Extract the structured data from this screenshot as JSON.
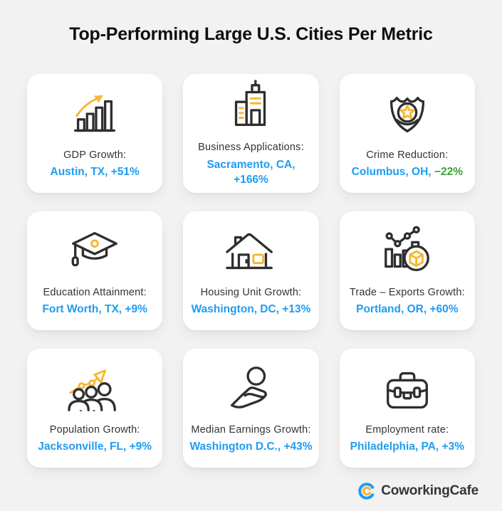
{
  "page": {
    "title": "Top-Performing Large U.S. Cities Per Metric",
    "background_color": "#f2f2f2"
  },
  "colors": {
    "value_blue": "#1d9df2",
    "value_green": "#3aa335",
    "icon_yellow": "#f7b733",
    "icon_dark": "#2e2e2e"
  },
  "cards": [
    {
      "icon": "bar-chart-growth-icon",
      "label": "GDP Growth:",
      "value": [
        {
          "text": "Austin, TX, +51%",
          "color": "blue"
        }
      ]
    },
    {
      "icon": "office-buildings-icon",
      "label": "Business Applications:",
      "value": [
        {
          "text": "Sacramento, CA,\n+166%",
          "color": "blue"
        }
      ]
    },
    {
      "icon": "police-badge-icon",
      "label": "Crime Reduction:",
      "value": [
        {
          "text": "Columbus, OH, ",
          "color": "blue"
        },
        {
          "text": "−22%",
          "color": "green"
        }
      ]
    },
    {
      "icon": "graduation-cap-icon",
      "label": "Education Attainment:",
      "value": [
        {
          "text": "Fort Worth, TX, +9%",
          "color": "blue"
        }
      ]
    },
    {
      "icon": "house-icon",
      "label": "Housing Unit Growth:",
      "value": [
        {
          "text": "Washington, DC, +13%",
          "color": "blue"
        }
      ]
    },
    {
      "icon": "trade-exports-icon",
      "label": "Trade – Exports Growth:",
      "value": [
        {
          "text": "Portland, OR, +60%",
          "color": "blue"
        }
      ]
    },
    {
      "icon": "population-growth-icon",
      "label": "Population Growth:",
      "value": [
        {
          "text": "Jacksonville, FL, +9%",
          "color": "blue"
        }
      ]
    },
    {
      "icon": "earnings-hand-coin-icon",
      "label": "Median Earnings Growth:",
      "value": [
        {
          "text": "Washington D.C., +43%",
          "color": "blue"
        }
      ]
    },
    {
      "icon": "briefcase-icon",
      "label": "Employment rate:",
      "value": [
        {
          "text": "Philadelphia, PA, +3%",
          "color": "blue"
        }
      ]
    }
  ],
  "footer": {
    "logo_text": "CoworkingCafe",
    "logo_icon": "coworkingcafe-logo-icon"
  }
}
